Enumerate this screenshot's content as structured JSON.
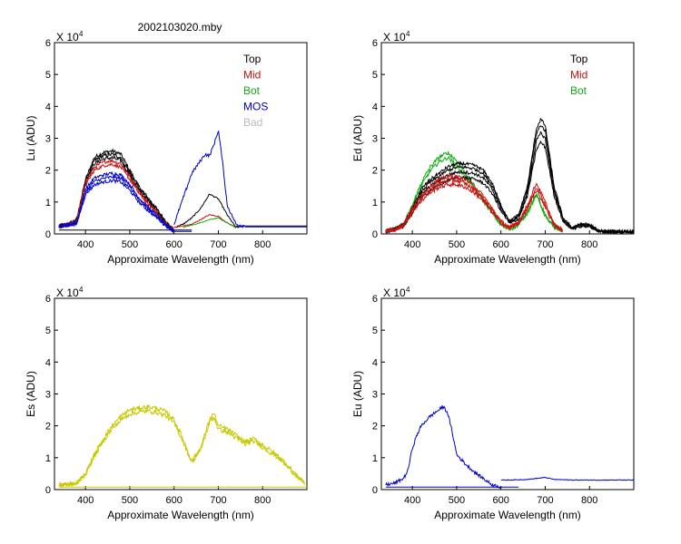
{
  "figure": {
    "title": "2002103020.mby",
    "background": "#ffffff"
  },
  "chart_data": [
    {
      "id": "lu",
      "type": "line",
      "xlabel": "Approximate Wavelength (nm)",
      "ylabel": "Lu (ADU)",
      "y_multiplier": "X 10",
      "y_multiplier_exp": "4",
      "xlim": [
        330,
        900
      ],
      "ylim": [
        0,
        6
      ],
      "xticks": [
        "400",
        "500",
        "600",
        "700",
        "800"
      ],
      "yticks": [
        "0",
        "1",
        "2",
        "3",
        "4",
        "5",
        "6"
      ],
      "legend_position": "top-right",
      "legend": [
        {
          "name": "Top",
          "color": "#000000"
        },
        {
          "name": "Mid",
          "color": "#cc1111"
        },
        {
          "name": "Bot",
          "color": "#11aa11"
        },
        {
          "name": "MOS",
          "color": "#0000cc"
        },
        {
          "name": "Bad",
          "color": "#bbbbbb"
        }
      ],
      "series": [
        {
          "color": "#000000",
          "segments": [
            {
              "x": [
                340,
                360,
                380,
                400,
                420,
                440,
                460,
                480,
                500,
                520,
                540,
                560,
                580,
                600
              ],
              "y": [
                0.25,
                0.3,
                0.45,
                1.7,
                2.4,
                2.55,
                2.6,
                2.5,
                2.0,
                1.5,
                1.15,
                0.8,
                0.4,
                0.1
              ],
              "noise": 0.06,
              "copies": [
                1.0,
                0.96,
                0.92
              ]
            },
            {
              "x": [
                600,
                620,
                640,
                660,
                680,
                700,
                720,
                740,
                760
              ],
              "y": [
                0.2,
                0.3,
                0.5,
                0.8,
                1.25,
                1.1,
                0.6,
                0.2,
                0.25
              ],
              "noise": 0.02,
              "copies": [
                1.0
              ]
            },
            {
              "x": [
                740,
                800,
                900
              ],
              "y": [
                0.25,
                0.25,
                0.25
              ],
              "noise": 0.0,
              "copies": [
                1.0
              ]
            },
            {
              "x": [
                340,
                600,
                640
              ],
              "y": [
                0.12,
                0.12,
                0.12
              ],
              "noise": 0.0,
              "copies": [
                1.0
              ]
            }
          ]
        },
        {
          "color": "#cc1111",
          "segments": [
            {
              "x": [
                340,
                360,
                380,
                400,
                420,
                440,
                460,
                480,
                500,
                520,
                540,
                560,
                580,
                600
              ],
              "y": [
                0.25,
                0.3,
                0.4,
                1.6,
                2.1,
                2.25,
                2.3,
                2.2,
                1.8,
                1.35,
                1.0,
                0.7,
                0.35,
                0.1
              ],
              "noise": 0.05,
              "copies": [
                1.0,
                0.95
              ]
            },
            {
              "x": [
                600,
                640,
                660,
                680,
                700,
                720,
                740
              ],
              "y": [
                0.2,
                0.3,
                0.45,
                0.6,
                0.55,
                0.35,
                0.2
              ],
              "noise": 0.015,
              "copies": [
                1.0
              ]
            }
          ]
        },
        {
          "color": "#11aa11",
          "segments": [
            {
              "x": [
                620,
                660,
                680,
                700,
                720,
                740
              ],
              "y": [
                0.2,
                0.35,
                0.45,
                0.5,
                0.35,
                0.2
              ],
              "noise": 0.01,
              "copies": [
                1.0
              ]
            }
          ]
        },
        {
          "color": "#0000cc",
          "segments": [
            {
              "x": [
                340,
                360,
                380,
                400,
                420,
                440,
                460,
                480,
                500,
                520,
                540,
                560,
                580,
                600
              ],
              "y": [
                0.25,
                0.3,
                0.35,
                1.4,
                1.75,
                1.85,
                1.9,
                1.85,
                1.55,
                1.15,
                0.85,
                0.6,
                0.3,
                0.1
              ],
              "noise": 0.05,
              "copies": [
                1.0,
                0.94,
                0.88
              ]
            },
            {
              "x": [
                600,
                620,
                640,
                660,
                670,
                680,
                690,
                700,
                710,
                720,
                740,
                760
              ],
              "y": [
                0.3,
                1.1,
                1.9,
                2.3,
                2.5,
                2.45,
                2.8,
                3.25,
                2.2,
                0.9,
                0.3,
                0.25
              ],
              "noise": 0.05,
              "copies": [
                1.0
              ]
            },
            {
              "x": [
                760,
                800,
                900
              ],
              "y": [
                0.22,
                0.22,
                0.22
              ],
              "noise": 0.0,
              "copies": [
                1.0
              ]
            },
            {
              "x": [
                600,
                640
              ],
              "y": [
                0.08,
                0.08
              ],
              "noise": 0.0,
              "copies": [
                1.0
              ]
            }
          ]
        }
      ]
    },
    {
      "id": "ed",
      "type": "line",
      "xlabel": "Approximate Wavelength (nm)",
      "ylabel": "Ed  (ADU)",
      "y_multiplier": "X 10",
      "y_multiplier_exp": "4",
      "xlim": [
        330,
        900
      ],
      "ylim": [
        0,
        6
      ],
      "xticks": [
        "400",
        "500",
        "600",
        "700",
        "800"
      ],
      "yticks": [
        "0",
        "1",
        "2",
        "3",
        "4",
        "5",
        "6"
      ],
      "legend_position": "top-right",
      "legend": [
        {
          "name": "Top",
          "color": "#000000"
        },
        {
          "name": "Mid",
          "color": "#cc1111"
        },
        {
          "name": "Bot",
          "color": "#11aa11"
        }
      ],
      "series": [
        {
          "color": "#11aa11",
          "segments": [
            {
              "x": [
                340,
                360,
                380,
                400,
                420,
                440,
                460,
                480,
                500,
                520,
                540,
                560,
                580,
                600,
                620,
                640,
                660,
                680,
                700,
                720,
                740
              ],
              "y": [
                0.1,
                0.15,
                0.3,
                0.9,
                1.6,
                2.1,
                2.4,
                2.55,
                2.3,
                1.9,
                1.5,
                1.1,
                0.7,
                0.3,
                0.15,
                0.3,
                0.7,
                1.3,
                0.6,
                0.2,
                0.1
              ],
              "noise": 0.06,
              "copies": [
                1.0,
                0.94
              ]
            }
          ]
        },
        {
          "color": "#000000",
          "segments": [
            {
              "x": [
                340,
                360,
                380,
                400,
                420,
                440,
                460,
                480,
                500,
                520,
                540,
                560,
                580,
                600,
                620,
                640,
                660,
                670,
                680,
                690,
                700,
                720,
                740,
                760,
                780,
                800,
                820,
                840,
                900
              ],
              "y": [
                0.1,
                0.15,
                0.3,
                0.8,
                1.4,
                1.7,
                1.9,
                2.1,
                2.2,
                2.2,
                2.15,
                2.0,
                1.6,
                0.9,
                0.4,
                0.6,
                1.5,
                2.4,
                3.3,
                3.6,
                3.4,
                1.5,
                0.5,
                0.2,
                0.3,
                0.3,
                0.1,
                0.08,
                0.08
              ],
              "noise": 0.05,
              "copies": [
                1.0,
                0.95,
                0.88,
                0.8
              ]
            }
          ]
        },
        {
          "color": "#cc1111",
          "segments": [
            {
              "x": [
                340,
                360,
                380,
                400,
                420,
                440,
                460,
                480,
                500,
                520,
                540,
                560,
                580,
                600,
                620,
                640,
                660,
                680,
                700,
                720,
                740
              ],
              "y": [
                0.1,
                0.15,
                0.3,
                0.8,
                1.2,
                1.5,
                1.7,
                1.8,
                1.8,
                1.7,
                1.5,
                1.2,
                0.8,
                0.4,
                0.2,
                0.4,
                0.9,
                1.6,
                1.0,
                0.3,
                0.1
              ],
              "noise": 0.06,
              "copies": [
                1.0,
                0.93,
                0.86
              ]
            }
          ]
        }
      ]
    },
    {
      "id": "es",
      "type": "line",
      "xlabel": "Approximate Wavelength (nm)",
      "ylabel": "Es  (ADU)",
      "y_multiplier": "X 10",
      "y_multiplier_exp": "4",
      "xlim": [
        330,
        900
      ],
      "ylim": [
        0,
        6
      ],
      "xticks": [
        "400",
        "500",
        "600",
        "700",
        "800"
      ],
      "yticks": [
        "0",
        "1",
        "2",
        "3",
        "4",
        "5",
        "6"
      ],
      "legend": [],
      "series": [
        {
          "color": "#c8c800",
          "segments": [
            {
              "x": [
                340,
                380,
                400,
                420,
                440,
                460,
                480,
                500,
                520,
                540,
                560,
                580,
                600,
                620,
                640,
                660,
                680,
                690,
                700,
                720,
                740,
                760,
                780,
                800,
                820,
                840,
                860,
                880,
                895
              ],
              "y": [
                0.15,
                0.2,
                0.5,
                1.1,
                1.6,
                2.0,
                2.3,
                2.5,
                2.55,
                2.6,
                2.55,
                2.45,
                2.2,
                1.6,
                0.9,
                1.3,
                2.2,
                2.4,
                2.0,
                1.9,
                1.7,
                1.5,
                1.6,
                1.4,
                1.2,
                1.0,
                0.7,
                0.4,
                0.2
              ],
              "noise": 0.07,
              "copies": [
                1.0,
                0.95
              ]
            },
            {
              "x": [
                340,
                900
              ],
              "y": [
                0.08,
                0.08
              ],
              "noise": 0.0,
              "copies": [
                1.0
              ]
            }
          ]
        }
      ]
    },
    {
      "id": "eu",
      "type": "line",
      "xlabel": "Approximate Wavelength (nm)",
      "ylabel": "Eu  (ADU)",
      "y_multiplier": "X 10",
      "y_multiplier_exp": "4",
      "xlim": [
        330,
        900
      ],
      "ylim": [
        0,
        6
      ],
      "xticks": [
        "400",
        "500",
        "600",
        "700",
        "800"
      ],
      "yticks": [
        "0",
        "1",
        "2",
        "3",
        "4",
        "5",
        "6"
      ],
      "legend": [],
      "series": [
        {
          "color": "#0000cc",
          "segments": [
            {
              "x": [
                340,
                360,
                380,
                390,
                400,
                410,
                420,
                440,
                460,
                470,
                480,
                490,
                500,
                510,
                520,
                540,
                560,
                580,
                600
              ],
              "y": [
                0.15,
                0.2,
                0.35,
                0.6,
                1.3,
                1.7,
                2.0,
                2.3,
                2.5,
                2.6,
                2.4,
                1.8,
                1.1,
                0.95,
                0.8,
                0.55,
                0.35,
                0.15,
                0.08
              ],
              "noise": 0.05,
              "copies": [
                1.0
              ]
            },
            {
              "x": [
                600,
                620,
                660,
                700,
                720,
                760,
                800,
                900
              ],
              "y": [
                0.3,
                0.3,
                0.32,
                0.38,
                0.32,
                0.3,
                0.3,
                0.3
              ],
              "noise": 0.01,
              "copies": [
                1.0
              ]
            },
            {
              "x": [
                340,
                640
              ],
              "y": [
                0.08,
                0.08
              ],
              "noise": 0.0,
              "copies": [
                1.0
              ]
            }
          ]
        }
      ]
    }
  ]
}
